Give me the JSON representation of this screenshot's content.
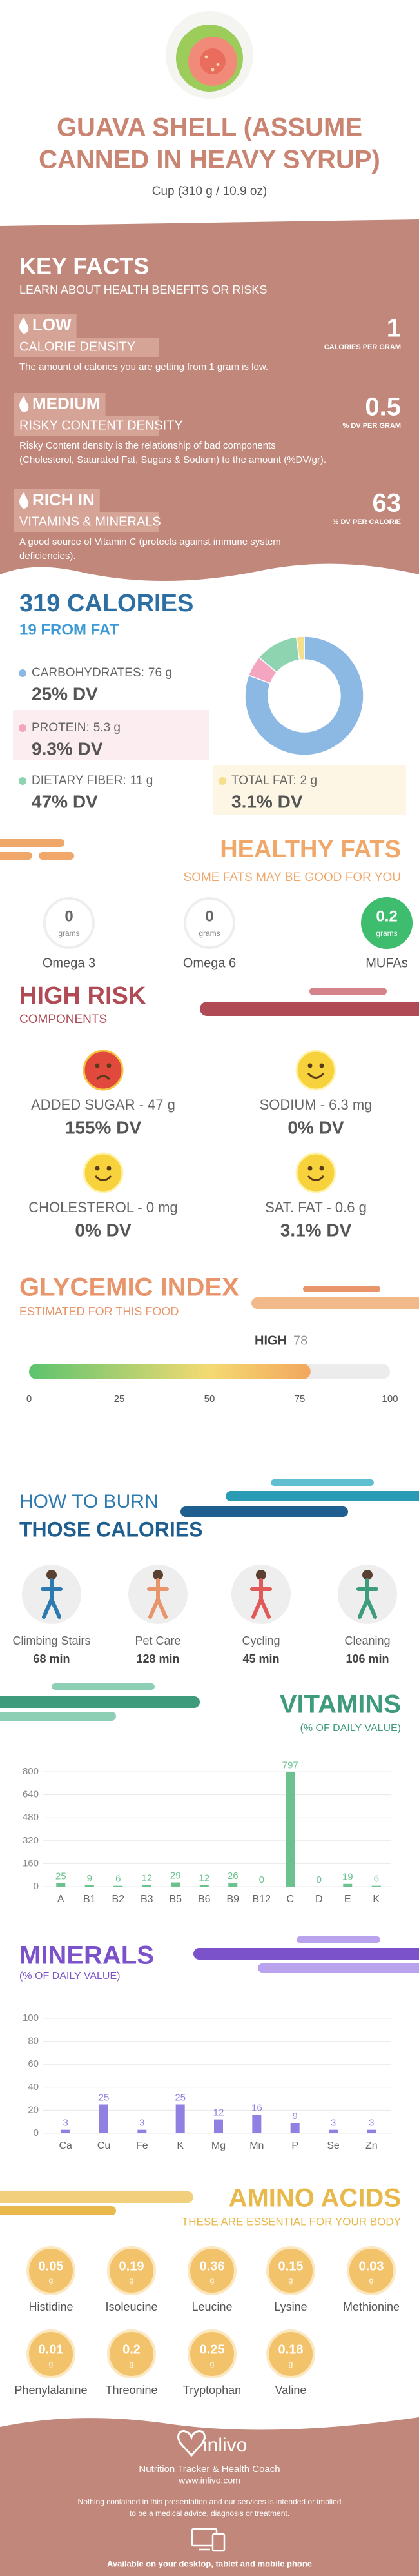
{
  "header": {
    "title_lines": [
      "GUAVA SHELL (ASSUME",
      "CANNED IN HEAVY SYRUP)"
    ],
    "serving": "Cup (310 g / 10.9 oz)"
  },
  "key_facts": {
    "title": "KEY FACTS",
    "subtitle": "LEARN ABOUT HEALTH BENEFITS OR RISKS",
    "items": [
      {
        "level": "LOW",
        "name": "CALORIE DENSITY",
        "value": 1,
        "unit": "CALORIES PER GRAM",
        "description": [
          "The amount of calories you are getting from 1 gram is low."
        ]
      },
      {
        "level": "MEDIUM",
        "name": "RISKY CONTENT DENSITY",
        "value": 0.5,
        "unit": "% DV PER GRAM",
        "description": [
          "Risky Content density is the relationship of bad components",
          "(Cholesterol, Saturated Fat, Sugars & Sodium) to the amount (%DV/gr)."
        ]
      },
      {
        "level": "RICH IN",
        "name": "VITAMINS & MINERALS",
        "value": 63,
        "unit": "% DV PER CALORIE",
        "description": [
          "A good source of Vitamin C (protects against immune system",
          "deficiencies)."
        ]
      }
    ]
  },
  "chart_data": [
    {
      "type": "pie",
      "title": "319 CALORIES",
      "subtitle": "19 FROM FAT",
      "categories": [
        "CARBOHYDRATES:",
        "PROTEIN:",
        "DIETARY FIBER:",
        "TOTAL FAT:"
      ],
      "values": [
        76,
        5.3,
        11,
        2
      ],
      "value_labels": [
        "76 g",
        "5.3 g",
        "11 g",
        "2 g"
      ],
      "dv_labels": [
        "25% DV",
        "9.3% DV",
        "47% DV",
        "3.1% DV"
      ],
      "colors": [
        "#8cb9e4",
        "#f4a6c0",
        "#8ed4b1",
        "#f6df8c"
      ]
    },
    {
      "type": "gauge",
      "title": "GLYCEMIC INDEX",
      "subtitle": "ESTIMATED FOR THIS FOOD",
      "level": "HIGH",
      "value": 78,
      "xlim": [
        0,
        100
      ],
      "xticks": [
        0,
        25,
        50,
        75,
        100
      ]
    },
    {
      "type": "bar",
      "title": "VITAMINS",
      "subtitle": "(% OF DAILY VALUE)",
      "categories": [
        "A",
        "B1",
        "B2",
        "B3",
        "B5",
        "B6",
        "B9",
        "B12",
        "C",
        "D",
        "E",
        "K"
      ],
      "values": [
        25,
        9,
        6,
        12,
        29,
        12,
        26,
        0,
        797,
        0,
        19,
        6
      ],
      "color": "#6cc28f",
      "ylim": [
        0,
        800
      ],
      "yticks": [
        0,
        160,
        320,
        480,
        640,
        800
      ],
      "grid": true
    },
    {
      "type": "bar",
      "title": "MINERALS",
      "subtitle": "(% OF DAILY VALUE)",
      "categories": [
        "Ca",
        "Cu",
        "Fe",
        "K",
        "Mg",
        "Mn",
        "P",
        "Se",
        "Zn"
      ],
      "values": [
        3,
        25,
        3,
        25,
        12,
        16,
        9,
        3,
        3
      ],
      "color": "#8f80e2",
      "ylim": [
        0,
        100
      ],
      "yticks": [
        0,
        20,
        40,
        60,
        80,
        100
      ],
      "grid": true
    }
  ],
  "healthy_fats": {
    "title": "HEALTHY FATS",
    "subtitle": "SOME FATS MAY BE GOOD FOR YOU",
    "unit": "grams",
    "items": [
      {
        "name": "Omega 3",
        "value": 0
      },
      {
        "name": "Omega 6",
        "value": 0
      },
      {
        "name": "MUFAs",
        "value": 0.2
      }
    ]
  },
  "high_risk": {
    "title": "HIGH RISK",
    "subtitle": "COMPONENTS",
    "items": [
      {
        "name": "ADDED SUGAR - 47 g",
        "dv": "155% DV"
      },
      {
        "name": "SODIUM - 6.3 mg",
        "dv": "0% DV"
      },
      {
        "name": "CHOLESTEROL - 0 mg",
        "dv": "0% DV"
      },
      {
        "name": "SAT. FAT - 0.6 g",
        "dv": "3.1% DV"
      }
    ]
  },
  "burn": {
    "title_lines": [
      "HOW TO BURN",
      "THOSE CALORIES"
    ],
    "items": [
      {
        "activity": "Climbing Stairs",
        "time": "68 min"
      },
      {
        "activity": "Pet Care",
        "time": "128 min"
      },
      {
        "activity": "Cycling",
        "time": "45 min"
      },
      {
        "activity": "Cleaning",
        "time": "106 min"
      }
    ]
  },
  "amino_acids": {
    "title": "AMINO ACIDS",
    "subtitle": "THESE ARE ESSENTIAL FOR YOUR BODY",
    "unit": "g",
    "items": [
      {
        "name": "Histidine",
        "value": 0.05
      },
      {
        "name": "Isoleucine",
        "value": 0.19
      },
      {
        "name": "Leucine",
        "value": 0.36
      },
      {
        "name": "Lysine",
        "value": 0.15
      },
      {
        "name": "Methionine",
        "value": 0.03
      },
      {
        "name": "Phenylalanine",
        "value": 0.01
      },
      {
        "name": "Threonine",
        "value": 0.2
      },
      {
        "name": "Tryptophan",
        "value": 0.25
      },
      {
        "name": "Valine",
        "value": 0.18
      }
    ]
  },
  "footer": {
    "brand": "inlivo",
    "tagline": "Nutrition Tracker & Health Coach",
    "url": "www.inlivo.com",
    "disclaimer": [
      "Nothing contained in this presentation and our services is intended or implied",
      "to be a medical advice, diagnosis or treatment."
    ],
    "availability": "Available on your desktop, tablet and mobile phone"
  }
}
